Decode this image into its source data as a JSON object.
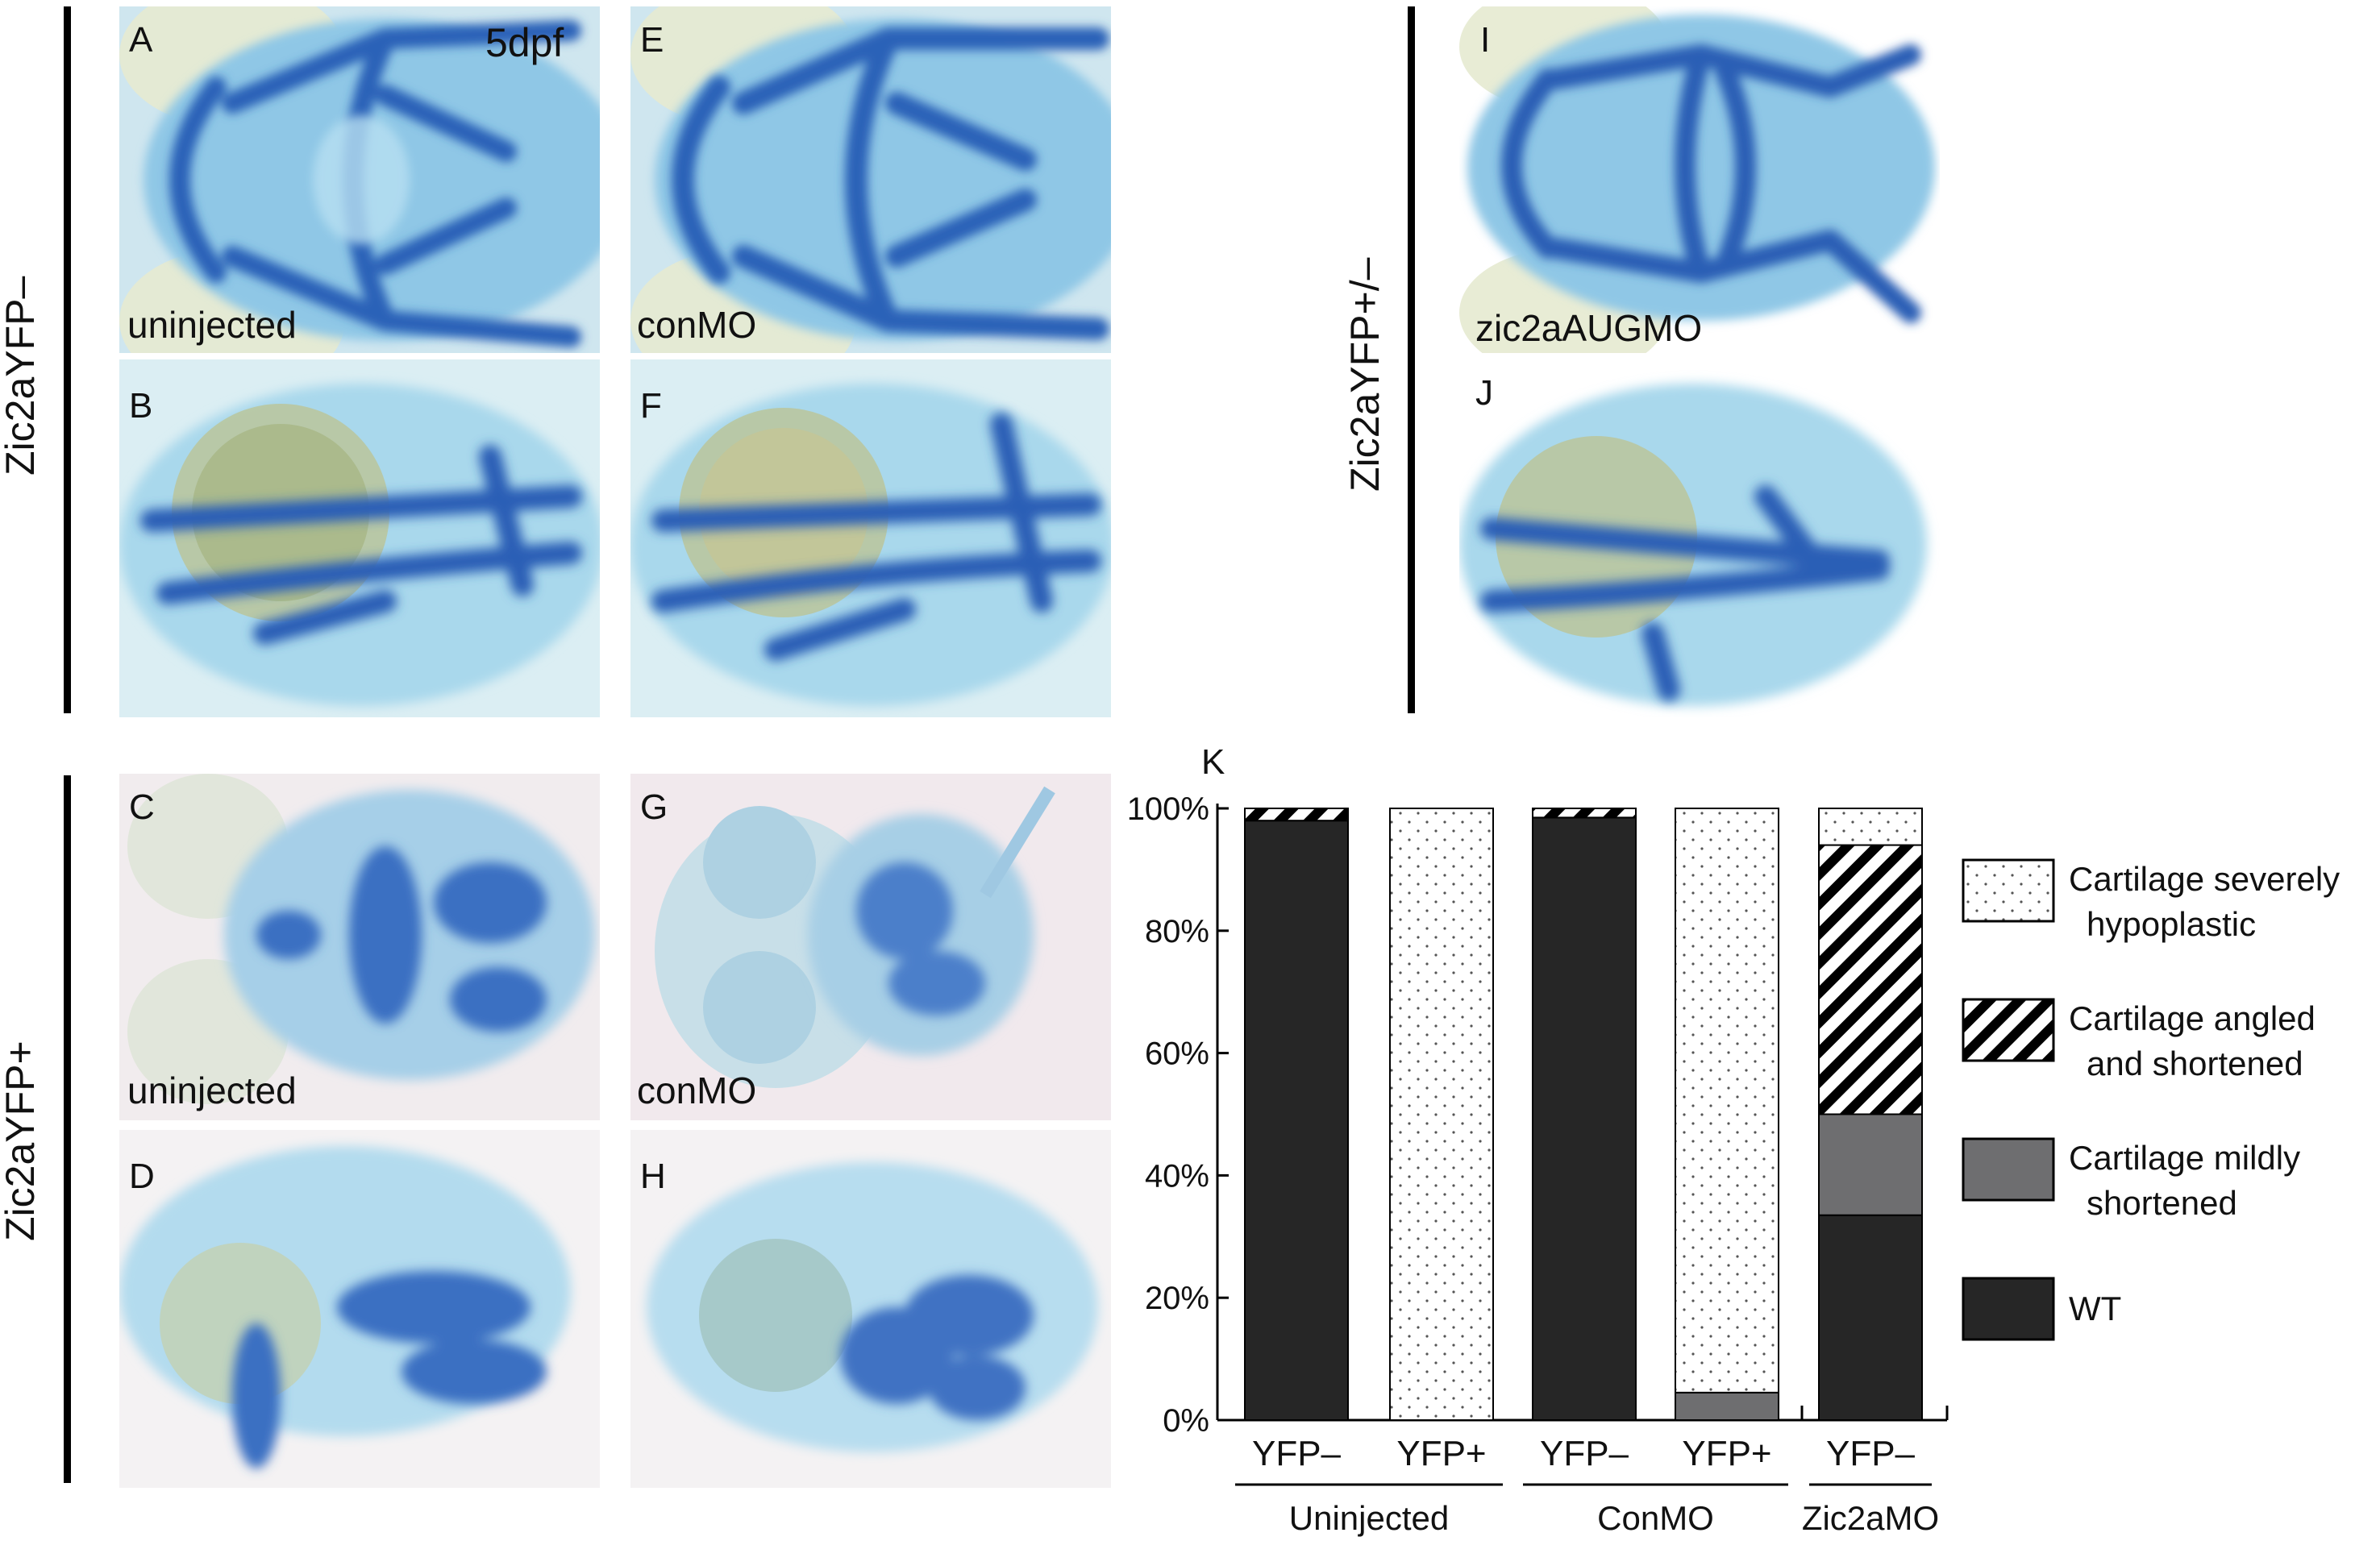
{
  "figure": {
    "stage_label": "5dpf",
    "row_labels": {
      "top": "Zic2aYFP–",
      "bottom": "Zic2aYFP+",
      "right": "Zic2aYFP+/–"
    },
    "panels": [
      {
        "letter": "A",
        "caption": "uninjected"
      },
      {
        "letter": "B",
        "caption": ""
      },
      {
        "letter": "C",
        "caption": "uninjected"
      },
      {
        "letter": "D",
        "caption": ""
      },
      {
        "letter": "E",
        "caption": "conMO"
      },
      {
        "letter": "F",
        "caption": ""
      },
      {
        "letter": "G",
        "caption": "conMO"
      },
      {
        "letter": "H",
        "caption": ""
      },
      {
        "letter": "I",
        "caption": "zic2aAUGMO"
      },
      {
        "letter": "J",
        "caption": ""
      }
    ],
    "chart_letter": "K"
  },
  "chart_data": {
    "type": "bar",
    "stacked": true,
    "categories": [
      "YFP–",
      "YFP+",
      "YFP–",
      "YFP+",
      "YFP–"
    ],
    "groups": [
      {
        "label": "Uninjected",
        "categories": [
          0,
          1
        ]
      },
      {
        "label": "ConMO",
        "categories": [
          2,
          3
        ]
      },
      {
        "label": "Zic2aMO",
        "categories": [
          4
        ]
      }
    ],
    "series": [
      {
        "name": "WT",
        "color": "#262626",
        "pattern": "solid",
        "values": [
          98,
          0,
          98.5,
          0,
          33.5
        ]
      },
      {
        "name": "Cartilage mildly shortened",
        "color": "#6e6e70",
        "pattern": "solid",
        "values": [
          0,
          0,
          0,
          4.5,
          16.5
        ]
      },
      {
        "name": "Cartilage angled and shortened",
        "color": "#000000",
        "pattern": "diagonal-stripes",
        "values": [
          2,
          0,
          1.5,
          0,
          44
        ]
      },
      {
        "name": "Cartilage severely hypoplastic",
        "color": "#ffffff",
        "pattern": "dots",
        "values": [
          0,
          100,
          0,
          95.5,
          6
        ]
      }
    ],
    "legend": [
      {
        "label_lines": [
          "Cartilage severely",
          "hypoplastic"
        ],
        "series": "Cartilage severely hypoplastic"
      },
      {
        "label_lines": [
          "Cartilage angled",
          "and shortened"
        ],
        "series": "Cartilage angled and shortened"
      },
      {
        "label_lines": [
          "Cartilage mildly",
          "shortened"
        ],
        "series": "Cartilage mildly shortened"
      },
      {
        "label_lines": [
          "WT"
        ],
        "series": "WT"
      }
    ],
    "yticks": [
      "0%",
      "20%",
      "40%",
      "60%",
      "80%",
      "100%"
    ],
    "ylim": [
      0,
      100
    ],
    "legend_position": "right"
  }
}
